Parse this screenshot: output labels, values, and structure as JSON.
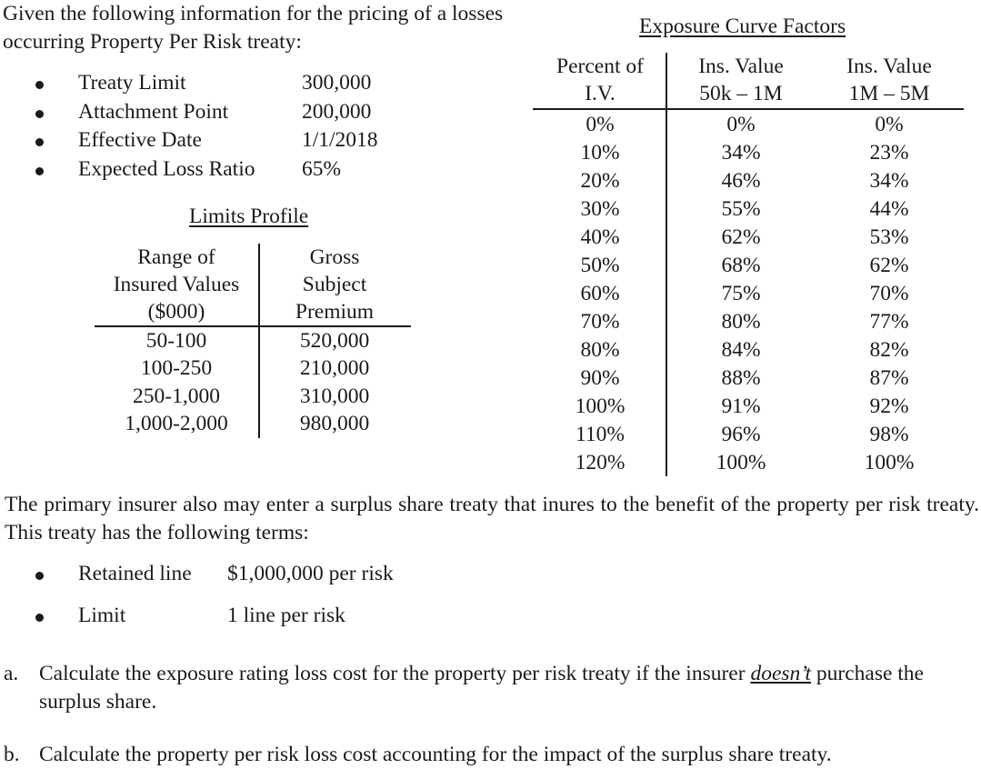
{
  "intro": "Given the following information for the pricing of a losses occurring Property Per Risk treaty:",
  "treaty_info": [
    {
      "label": "Treaty Limit",
      "value": "300,000"
    },
    {
      "label": "Attachment Point",
      "value": "200,000"
    },
    {
      "label": "Effective Date",
      "value": "1/1/2018"
    },
    {
      "label": "Expected Loss Ratio",
      "value": "65%"
    }
  ],
  "limits_profile": {
    "title": "Limits Profile",
    "headers": [
      [
        "Range of",
        "Insured Values",
        "($000)"
      ],
      [
        "Gross",
        "Subject",
        "Premium"
      ]
    ],
    "rows": [
      [
        "50-100",
        "520,000"
      ],
      [
        "100-250",
        "210,000"
      ],
      [
        "250-1,000",
        "310,000"
      ],
      [
        "1,000-2,000",
        "980,000"
      ]
    ]
  },
  "exposure_curve": {
    "title": "Exposure Curve Factors",
    "headers": [
      [
        "Percent of",
        "I.V."
      ],
      [
        "Ins. Value",
        "50k – 1M"
      ],
      [
        "Ins. Value",
        "1M – 5M"
      ]
    ],
    "rows": [
      [
        "0%",
        "0%",
        "0%"
      ],
      [
        "10%",
        "34%",
        "23%"
      ],
      [
        "20%",
        "46%",
        "34%"
      ],
      [
        "30%",
        "55%",
        "44%"
      ],
      [
        "40%",
        "62%",
        "53%"
      ],
      [
        "50%",
        "68%",
        "62%"
      ],
      [
        "60%",
        "75%",
        "70%"
      ],
      [
        "70%",
        "80%",
        "77%"
      ],
      [
        "80%",
        "84%",
        "82%"
      ],
      [
        "90%",
        "88%",
        "87%"
      ],
      [
        "100%",
        "91%",
        "92%"
      ],
      [
        "110%",
        "96%",
        "98%"
      ],
      [
        "120%",
        "100%",
        "100%"
      ]
    ]
  },
  "surplus_paragraph": "The primary insurer also may enter a surplus share treaty that inures to the benefit of the property per risk treaty. This treaty has the following terms:",
  "surplus_terms": [
    {
      "label": "Retained line",
      "value": "$1,000,000 per risk"
    },
    {
      "label": "Limit",
      "value": "1 line per risk"
    }
  ],
  "questions": {
    "a": {
      "letter": "a.",
      "before": "Calculate the exposure rating loss cost for the property per risk treaty if the insurer ",
      "emphasis": "doesn’t",
      "after": " purchase the surplus share."
    },
    "b": {
      "letter": "b.",
      "text": "Calculate the property per risk loss cost accounting for the impact of the surplus share treaty."
    }
  }
}
